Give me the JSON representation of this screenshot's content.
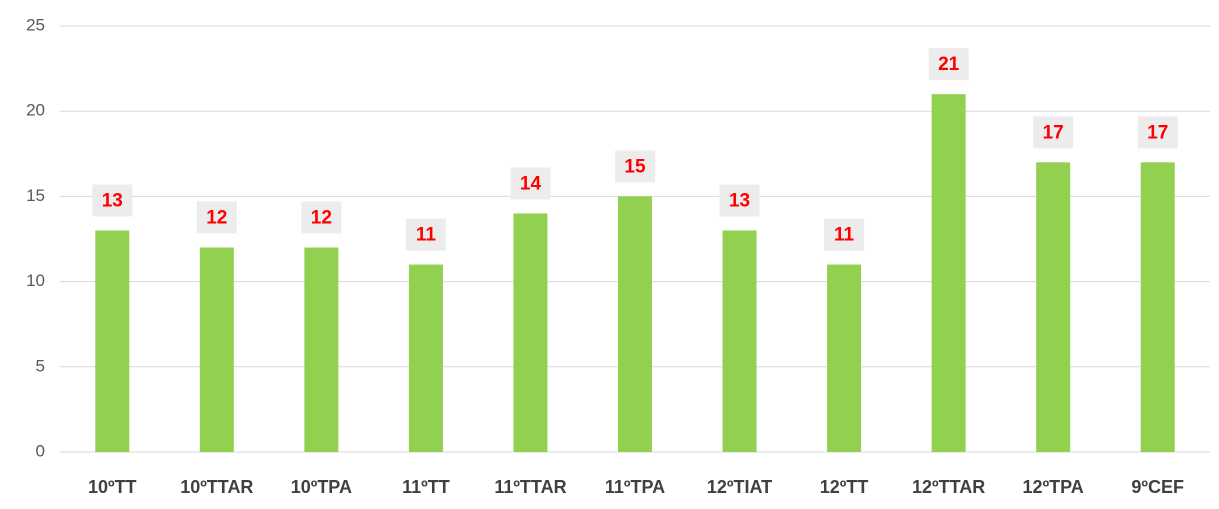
{
  "chart_data": {
    "type": "bar",
    "categories": [
      "10ºTT",
      "10ºTTAR",
      "10ºTPA",
      "11ºTT",
      "11ºTTAR",
      "11ºTPA",
      "12ºTIAT",
      "12ºTT",
      "12ºTTAR",
      "12ºTPA",
      "9ºCEF"
    ],
    "values": [
      13,
      12,
      12,
      11,
      14,
      15,
      13,
      11,
      21,
      17,
      17
    ],
    "color": "#92d050",
    "ylim": [
      0,
      25
    ],
    "yticks": [
      0,
      5,
      10,
      15,
      20,
      25
    ],
    "grid": true
  }
}
